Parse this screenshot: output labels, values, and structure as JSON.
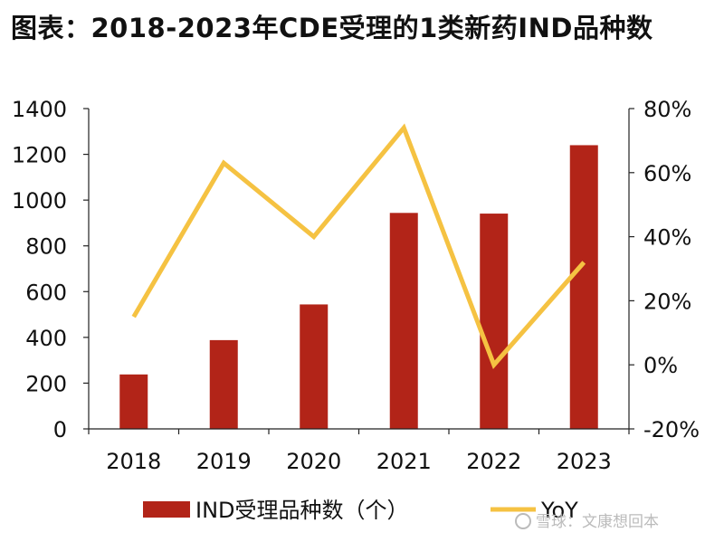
{
  "title": "图表：2018-2023年CDE受理的1类新药IND品种数",
  "watermark": "雪球：文康想回本",
  "colors": {
    "bar": "#B22418",
    "line": "#F5C242",
    "axis": "#222222"
  },
  "chart_data": {
    "type": "bar",
    "categories": [
      "2018",
      "2019",
      "2020",
      "2021",
      "2022",
      "2023"
    ],
    "series": [
      {
        "name": "IND受理品种数（个）",
        "type": "bar",
        "axis": "left",
        "values": [
          238,
          388,
          544,
          944,
          941,
          1240
        ]
      },
      {
        "name": "YoY",
        "type": "line",
        "axis": "right",
        "values": [
          15,
          63,
          40,
          74,
          0,
          32
        ]
      }
    ],
    "left_axis": {
      "min": 0,
      "max": 1400,
      "step": 200,
      "ticks": [
        "0",
        "200",
        "400",
        "600",
        "800",
        "1000",
        "1200",
        "1400"
      ]
    },
    "right_axis": {
      "min": -20,
      "max": 80,
      "step": 20,
      "unit": "%",
      "ticks": [
        "-20%",
        "0%",
        "20%",
        "40%",
        "60%",
        "80%"
      ]
    },
    "grid": false,
    "legend": "bottom"
  }
}
